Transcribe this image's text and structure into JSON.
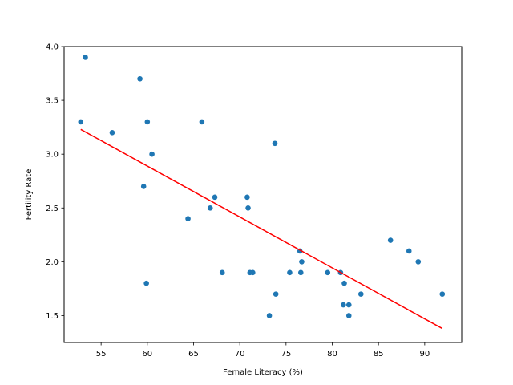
{
  "chart_data": {
    "type": "scatter",
    "xlabel": "Female Literacy (%)",
    "ylabel": "Fertility Rate",
    "xlim": [
      51.0,
      94.0
    ],
    "ylim": [
      1.25,
      4.0
    ],
    "xticks": [
      55,
      60,
      65,
      70,
      75,
      80,
      85,
      90
    ],
    "yticks": [
      1.5,
      2.0,
      2.5,
      3.0,
      3.5,
      4.0
    ],
    "grid": false,
    "point_color": "#1f77b4",
    "line_color": "#ff0000",
    "points": [
      {
        "x": 52.8,
        "y": 3.3
      },
      {
        "x": 53.3,
        "y": 3.9
      },
      {
        "x": 56.2,
        "y": 3.2
      },
      {
        "x": 59.2,
        "y": 3.7
      },
      {
        "x": 59.6,
        "y": 2.7
      },
      {
        "x": 59.9,
        "y": 1.8
      },
      {
        "x": 60.0,
        "y": 3.3
      },
      {
        "x": 60.5,
        "y": 3.0
      },
      {
        "x": 64.4,
        "y": 2.4
      },
      {
        "x": 65.9,
        "y": 3.3
      },
      {
        "x": 66.8,
        "y": 2.5
      },
      {
        "x": 67.3,
        "y": 2.6
      },
      {
        "x": 68.1,
        "y": 1.9
      },
      {
        "x": 70.8,
        "y": 2.6
      },
      {
        "x": 70.9,
        "y": 2.5
      },
      {
        "x": 71.1,
        "y": 1.9
      },
      {
        "x": 71.4,
        "y": 1.9
      },
      {
        "x": 73.2,
        "y": 1.5
      },
      {
        "x": 73.8,
        "y": 3.1
      },
      {
        "x": 73.9,
        "y": 1.7
      },
      {
        "x": 75.4,
        "y": 1.9
      },
      {
        "x": 76.5,
        "y": 2.1
      },
      {
        "x": 76.6,
        "y": 1.9
      },
      {
        "x": 76.7,
        "y": 2.0
      },
      {
        "x": 79.5,
        "y": 1.9
      },
      {
        "x": 80.9,
        "y": 1.9
      },
      {
        "x": 81.2,
        "y": 1.6
      },
      {
        "x": 81.3,
        "y": 1.8
      },
      {
        "x": 81.8,
        "y": 1.6
      },
      {
        "x": 81.8,
        "y": 1.5
      },
      {
        "x": 83.1,
        "y": 1.7
      },
      {
        "x": 86.3,
        "y": 2.2
      },
      {
        "x": 88.3,
        "y": 2.1
      },
      {
        "x": 89.3,
        "y": 2.0
      },
      {
        "x": 91.9,
        "y": 1.7
      }
    ],
    "trend_line": {
      "x": [
        52.8,
        91.9
      ],
      "y": [
        3.23,
        1.38
      ]
    }
  }
}
